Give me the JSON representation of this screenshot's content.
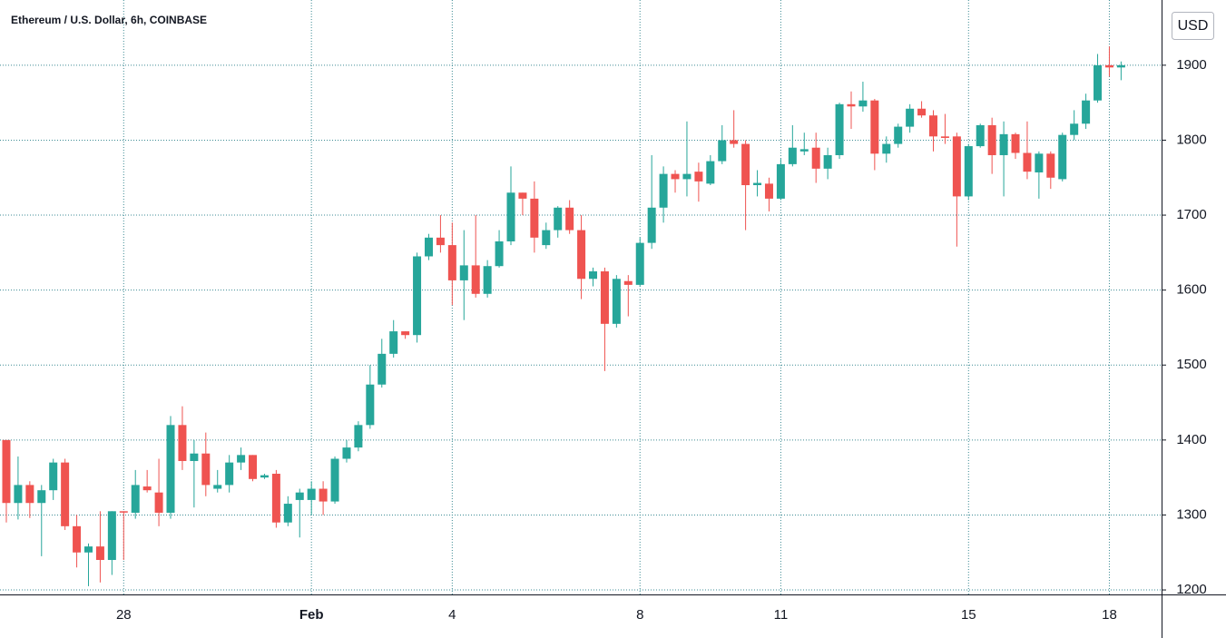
{
  "chart_data": {
    "type": "candlestick",
    "title": "Ethereum / U.S. Dollar, 6h, COINBASE",
    "currency": "USD",
    "up_color": "#26a69a",
    "down_color": "#ef5350",
    "grid": true,
    "ylim": [
      1194,
      1987
    ],
    "yticks": [
      1200,
      1300,
      1400,
      1500,
      1600,
      1700,
      1800,
      1900
    ],
    "xlim": [
      -0.54,
      98.45
    ],
    "xticks": [
      {
        "value": 10,
        "label": "28"
      },
      {
        "value": 26,
        "label": "Feb"
      },
      {
        "value": 38,
        "label": "4"
      },
      {
        "value": 54,
        "label": "8"
      },
      {
        "value": 66,
        "label": "11"
      },
      {
        "value": 82,
        "label": "15"
      },
      {
        "value": 94,
        "label": "18"
      }
    ],
    "open": [
      1400,
      1316,
      1340,
      1316,
      1333,
      1370,
      1285,
      1250,
      1258,
      1240,
      1305,
      1303,
      1338,
      1330,
      1303,
      1420,
      1372,
      1382,
      1335,
      1340,
      1370,
      1380,
      1350,
      1355,
      1290,
      1320,
      1320,
      1335,
      1318,
      1375,
      1390,
      1420,
      1474,
      1515,
      1545,
      1540,
      1645,
      1670,
      1660,
      1613,
      1633,
      1595,
      1632,
      1665,
      1730,
      1722,
      1660,
      1680,
      1710,
      1680,
      1615,
      1625,
      1555,
      1612,
      1607,
      1663,
      1710,
      1755,
      1748,
      1758,
      1742,
      1772,
      1800,
      1795,
      1740,
      1742,
      1722,
      1768,
      1785,
      1790,
      1762,
      1780,
      1848,
      1845,
      1853,
      1782,
      1795,
      1818,
      1842,
      1833,
      1805,
      1805,
      1725,
      1792,
      1820,
      1780,
      1808,
      1783,
      1757,
      1782,
      1748,
      1807,
      1822,
      1853,
      1900,
      1897
    ],
    "high": [
      1400,
      1378,
      1345,
      1340,
      1375,
      1375,
      1300,
      1262,
      1305,
      1305,
      1305,
      1360,
      1360,
      1375,
      1432,
      1445,
      1400,
      1410,
      1360,
      1380,
      1390,
      1380,
      1355,
      1360,
      1325,
      1335,
      1345,
      1345,
      1378,
      1400,
      1425,
      1500,
      1535,
      1560,
      1545,
      1650,
      1675,
      1700,
      1690,
      1680,
      1700,
      1640,
      1680,
      1765,
      1730,
      1745,
      1690,
      1712,
      1720,
      1700,
      1630,
      1630,
      1620,
      1620,
      1670,
      1780,
      1765,
      1760,
      1825,
      1770,
      1780,
      1820,
      1840,
      1800,
      1760,
      1750,
      1775,
      1820,
      1810,
      1810,
      1790,
      1850,
      1865,
      1878,
      1855,
      1805,
      1822,
      1848,
      1852,
      1840,
      1835,
      1810,
      1795,
      1822,
      1830,
      1825,
      1810,
      1825,
      1785,
      1785,
      1810,
      1840,
      1862,
      1915,
      1925,
      1905
    ],
    "low": [
      1290,
      1294,
      1296,
      1245,
      1320,
      1280,
      1230,
      1205,
      1210,
      1220,
      1240,
      1295,
      1330,
      1285,
      1295,
      1360,
      1310,
      1325,
      1330,
      1330,
      1360,
      1345,
      1348,
      1283,
      1285,
      1270,
      1300,
      1300,
      1315,
      1370,
      1385,
      1415,
      1470,
      1510,
      1535,
      1530,
      1640,
      1650,
      1580,
      1560,
      1590,
      1590,
      1630,
      1660,
      1700,
      1650,
      1655,
      1670,
      1675,
      1588,
      1605,
      1492,
      1550,
      1565,
      1605,
      1655,
      1690,
      1730,
      1725,
      1718,
      1740,
      1768,
      1790,
      1680,
      1725,
      1705,
      1720,
      1765,
      1780,
      1743,
      1748,
      1775,
      1815,
      1838,
      1760,
      1770,
      1790,
      1810,
      1830,
      1785,
      1795,
      1658,
      1720,
      1790,
      1755,
      1725,
      1775,
      1748,
      1722,
      1735,
      1745,
      1800,
      1815,
      1850,
      1885,
      1880
    ],
    "close": [
      1316,
      1340,
      1316,
      1333,
      1370,
      1285,
      1250,
      1258,
      1240,
      1305,
      1304,
      1340,
      1333,
      1303,
      1420,
      1372,
      1382,
      1340,
      1340,
      1370,
      1380,
      1348,
      1353,
      1290,
      1315,
      1330,
      1335,
      1318,
      1375,
      1390,
      1420,
      1474,
      1515,
      1545,
      1540,
      1645,
      1670,
      1660,
      1613,
      1633,
      1595,
      1632,
      1665,
      1730,
      1722,
      1670,
      1680,
      1710,
      1680,
      1615,
      1625,
      1555,
      1615,
      1607,
      1663,
      1710,
      1755,
      1748,
      1755,
      1745,
      1772,
      1800,
      1795,
      1740,
      1743,
      1722,
      1768,
      1790,
      1788,
      1762,
      1780,
      1848,
      1845,
      1853,
      1782,
      1795,
      1818,
      1842,
      1833,
      1805,
      1803,
      1725,
      1792,
      1820,
      1780,
      1808,
      1783,
      1758,
      1782,
      1750,
      1807,
      1822,
      1853,
      1900,
      1897,
      1900
    ]
  }
}
